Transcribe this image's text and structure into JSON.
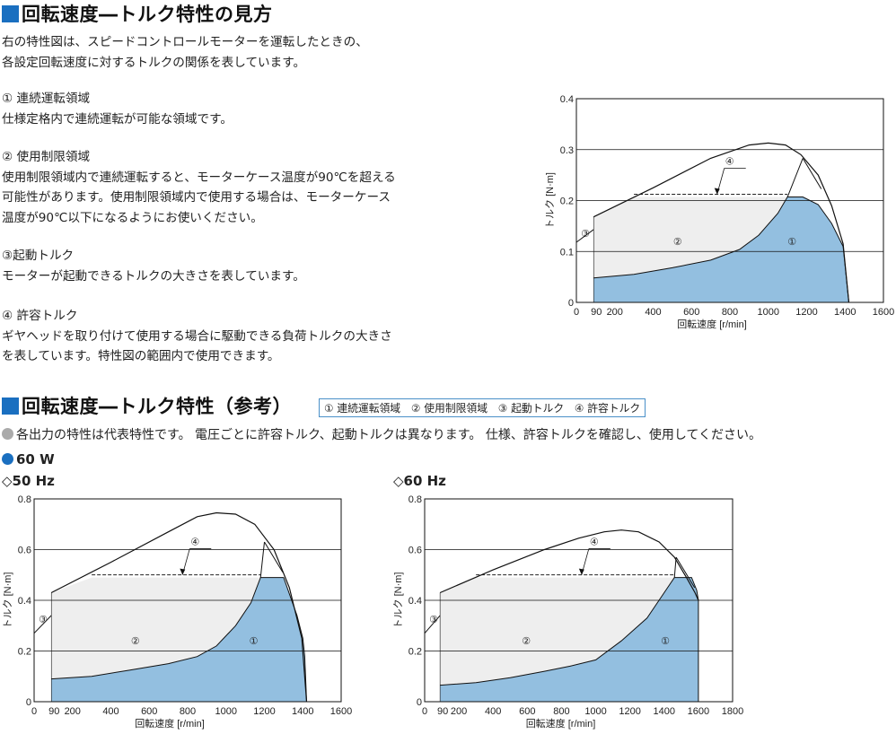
{
  "section1": {
    "title": "回転速度―トルク特性の見方",
    "intro1": "右の特性図は、スピードコントロールモーターを運転したときの、",
    "intro2": "各設定回転速度に対するトルクの関係を表しています。",
    "items": [
      {
        "heading": "① 連続運転領域",
        "lines": [
          "仕様定格内で連続運転が可能な領域です。"
        ]
      },
      {
        "heading": "② 使用制限領域",
        "lines": [
          "使用制限領域内で連続運転すると、モーターケース温度が90℃を超える",
          "可能性があります。使用制限領域内で使用する場合は、モーターケース",
          "温度が90℃以下になるようにお使いください。"
        ]
      },
      {
        "heading": "③起動トルク",
        "lines": [
          "モーターが起動できるトルクの大きさを表しています。"
        ]
      },
      {
        "heading": "④ 許容トルク",
        "lines": [
          "ギヤヘッドを取り付けて使用する場合に駆動できる負荷トルクの大きさ",
          "を表しています。特性図の範囲内で使用できます。"
        ]
      }
    ]
  },
  "section2": {
    "title": "回転速度―トルク特性（参考）",
    "legend": "① 連続運転領域　② 使用制限領域　③ 起動トルク　④ 許容トルク",
    "note": "各出力の特性は代表特性です。 電圧ごとに許容トルク、起動トルクは異なります。 仕様、許容トルクを確認し、使用してください。",
    "power": "60 W",
    "sub50": "◇50 Hz",
    "sub60": "◇60 Hz"
  },
  "colors": {
    "accent": "#1a6fc0",
    "region1": "#93bfe0",
    "region2": "#eeeeee",
    "grey_dot": "#aaaaaa"
  },
  "chart_data": [
    {
      "type": "area",
      "title": "",
      "xlabel": "回転速度 [r/min]",
      "ylabel": "トルク [N·m]",
      "xlim": [
        0,
        1600
      ],
      "ylim": [
        0,
        0.4
      ],
      "xticks": [
        0,
        200,
        400,
        600,
        800,
        1000,
        1200,
        1400,
        1600
      ],
      "extra_xtick": 90,
      "yticks": [
        0,
        0.1,
        0.2,
        0.3,
        0.4
      ],
      "ytick_labels": [
        "0",
        "0.1",
        "0.2",
        "0.3",
        "0.4"
      ],
      "series": [
        {
          "name": "①",
          "points": [
            [
              90,
              0.048
            ],
            [
              300,
              0.055
            ],
            [
              500,
              0.068
            ],
            [
              700,
              0.083
            ],
            [
              850,
              0.104
            ],
            [
              950,
              0.132
            ],
            [
              1050,
              0.175
            ],
            [
              1100,
              0.207
            ],
            [
              1180,
              0.207
            ],
            [
              1260,
              0.192
            ],
            [
              1330,
              0.155
            ],
            [
              1390,
              0.11
            ],
            [
              1420,
              0
            ]
          ]
        },
        {
          "name": "②",
          "points": [
            [
              90,
              0.168
            ],
            [
              300,
              0.207
            ],
            [
              1100,
              0.207
            ]
          ]
        },
        {
          "name": "③",
          "points": [
            [
              0,
              0.118
            ],
            [
              90,
              0.143
            ]
          ]
        },
        {
          "name": "④",
          "points": [
            [
              300,
              0.207
            ],
            [
              1100,
              0.207
            ]
          ]
        },
        {
          "name": "max",
          "points": [
            [
              90,
              0.168
            ],
            [
              400,
              0.225
            ],
            [
              700,
              0.283
            ],
            [
              900,
              0.309
            ],
            [
              1000,
              0.313
            ],
            [
              1090,
              0.309
            ],
            [
              1170,
              0.29
            ],
            [
              1260,
              0.25
            ],
            [
              1330,
              0.19
            ],
            [
              1390,
              0.115
            ],
            [
              1420,
              0
            ]
          ]
        }
      ],
      "peak": [
        1180,
        0.283
      ],
      "labels": {
        "c1": "①",
        "c2": "②",
        "c3": "③",
        "c4": "④"
      }
    },
    {
      "type": "area",
      "title": "",
      "xlabel": "回転速度 [r/min]",
      "ylabel": "トルク [N·m]",
      "xlim": [
        0,
        1600
      ],
      "ylim": [
        0,
        0.8
      ],
      "xticks": [
        0,
        200,
        400,
        600,
        800,
        1000,
        1200,
        1400,
        1600
      ],
      "extra_xtick": 90,
      "yticks": [
        0,
        0.2,
        0.4,
        0.6,
        0.8
      ],
      "ytick_labels": [
        "0",
        "0.2",
        "0.4",
        "0.6",
        "0.8"
      ],
      "series": [
        {
          "name": "①",
          "points": [
            [
              90,
              0.09
            ],
            [
              300,
              0.1
            ],
            [
              500,
              0.125
            ],
            [
              700,
              0.15
            ],
            [
              850,
              0.178
            ],
            [
              950,
              0.22
            ],
            [
              1050,
              0.3
            ],
            [
              1130,
              0.39
            ],
            [
              1180,
              0.49
            ],
            [
              1300,
              0.49
            ],
            [
              1370,
              0.34
            ],
            [
              1400,
              0.25
            ],
            [
              1410,
              0.18
            ],
            [
              1420,
              0
            ]
          ]
        },
        {
          "name": "②",
          "points": [
            [
              90,
              0.43
            ],
            [
              300,
              0.49
            ],
            [
              1180,
              0.49
            ]
          ]
        },
        {
          "name": "③",
          "points": [
            [
              0,
              0.27
            ],
            [
              90,
              0.34
            ]
          ]
        },
        {
          "name": "④",
          "points": [
            [
              300,
              0.49
            ],
            [
              1180,
              0.49
            ]
          ]
        },
        {
          "name": "max",
          "points": [
            [
              90,
              0.43
            ],
            [
              400,
              0.55
            ],
            [
              700,
              0.67
            ],
            [
              850,
              0.73
            ],
            [
              950,
              0.745
            ],
            [
              1050,
              0.74
            ],
            [
              1150,
              0.7
            ],
            [
              1250,
              0.6
            ],
            [
              1330,
              0.45
            ],
            [
              1395,
              0.25
            ],
            [
              1420,
              0
            ]
          ]
        }
      ],
      "peak": [
        1200,
        0.63
      ],
      "labels": {
        "c1": "①",
        "c2": "②",
        "c3": "③",
        "c4": "④"
      }
    },
    {
      "type": "area",
      "title": "",
      "xlabel": "回転速度 [r/min]",
      "ylabel": "トルク [N·m]",
      "xlim": [
        0,
        1800
      ],
      "ylim": [
        0,
        0.8
      ],
      "xticks": [
        0,
        200,
        400,
        600,
        800,
        1000,
        1200,
        1400,
        1600,
        1800
      ],
      "extra_xtick": 90,
      "yticks": [
        0,
        0.2,
        0.4,
        0.6,
        0.8
      ],
      "ytick_labels": [
        "0",
        "0.2",
        "0.4",
        "0.6",
        "0.8"
      ],
      "series": [
        {
          "name": "①",
          "points": [
            [
              90,
              0.065
            ],
            [
              300,
              0.075
            ],
            [
              500,
              0.095
            ],
            [
              700,
              0.12
            ],
            [
              850,
              0.14
            ],
            [
              1000,
              0.165
            ],
            [
              1150,
              0.24
            ],
            [
              1300,
              0.33
            ],
            [
              1400,
              0.43
            ],
            [
              1460,
              0.49
            ],
            [
              1560,
              0.49
            ],
            [
              1590,
              0.44
            ],
            [
              1600,
              0.4
            ],
            [
              1600,
              0
            ]
          ]
        },
        {
          "name": "②",
          "points": [
            [
              90,
              0.43
            ],
            [
              300,
              0.49
            ],
            [
              1460,
              0.49
            ]
          ]
        },
        {
          "name": "③",
          "points": [
            [
              0,
              0.27
            ],
            [
              90,
              0.34
            ]
          ]
        },
        {
          "name": "④",
          "points": [
            [
              300,
              0.49
            ],
            [
              1460,
              0.49
            ]
          ]
        },
        {
          "name": "max",
          "points": [
            [
              90,
              0.43
            ],
            [
              400,
              0.52
            ],
            [
              700,
              0.6
            ],
            [
              900,
              0.645
            ],
            [
              1050,
              0.67
            ],
            [
              1150,
              0.677
            ],
            [
              1250,
              0.67
            ],
            [
              1370,
              0.63
            ],
            [
              1460,
              0.57
            ],
            [
              1530,
              0.49
            ],
            [
              1580,
              0.43
            ],
            [
              1600,
              0.4
            ]
          ]
        }
      ],
      "peak": [
        1470,
        0.57
      ],
      "labels": {
        "c1": "①",
        "c2": "②",
        "c3": "③",
        "c4": "④"
      }
    }
  ]
}
